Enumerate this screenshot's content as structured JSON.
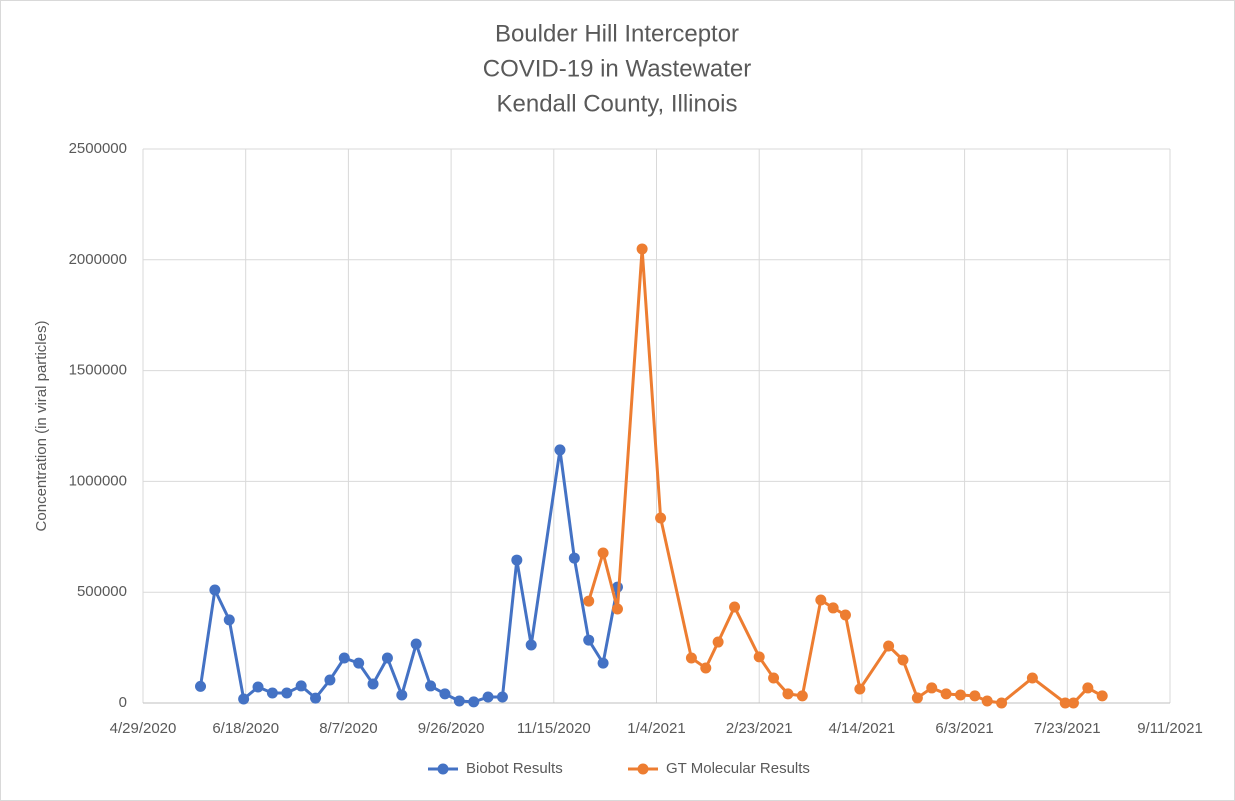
{
  "chart_data": {
    "type": "line",
    "title": [
      "Boulder Hill Interceptor",
      "COVID-19 in Wastewater",
      "Kendall County, Illinois"
    ],
    "y_label": "Concentration (in viral particles)",
    "xlim": [
      "4/29/2020",
      "9/11/2021"
    ],
    "xticks": [
      "4/29/2020",
      "6/18/2020",
      "8/7/2020",
      "9/26/2020",
      "11/15/2020",
      "1/4/2021",
      "2/23/2021",
      "4/14/2021",
      "6/3/2021",
      "7/23/2021",
      "9/11/2021"
    ],
    "ylim": [
      0,
      2500000
    ],
    "yticks": [
      0,
      500000,
      1000000,
      1500000,
      2000000,
      2500000
    ],
    "grid": true,
    "legend": "bottom",
    "series": [
      {
        "name": "Biobot Results",
        "color": "#4472c4",
        "x": [
          "5/27/2020",
          "6/3/2020",
          "6/10/2020",
          "6/17/2020",
          "6/24/2020",
          "7/1/2020",
          "7/8/2020",
          "7/15/2020",
          "7/22/2020",
          "7/29/2020",
          "8/5/2020",
          "8/12/2020",
          "8/19/2020",
          "8/26/2020",
          "9/2/2020",
          "9/9/2020",
          "9/16/2020",
          "9/23/2020",
          "9/30/2020",
          "10/7/2020",
          "10/14/2020",
          "10/21/2020",
          "10/28/2020",
          "11/4/2020",
          "11/18/2020",
          "11/25/2020",
          "12/2/2020",
          "12/9/2020",
          "12/16/2020"
        ],
        "values": [
          75000,
          510000,
          375000,
          18000,
          72000,
          45000,
          45000,
          77000,
          22000,
          104000,
          203000,
          180000,
          86000,
          203000,
          36000,
          266000,
          77000,
          41000,
          9000,
          5000,
          27000,
          27000,
          645000,
          262000,
          1142000,
          654000,
          284000,
          180000,
          523000
        ]
      },
      {
        "name": "GT Molecular Results",
        "color": "#ed7d31",
        "x": [
          "12/2/2020",
          "12/9/2020",
          "12/16/2020",
          "12/28/2020",
          "1/6/2021",
          "1/21/2021",
          "1/28/2021",
          "2/3/2021",
          "2/11/2021",
          "2/23/2021",
          "3/2/2021",
          "3/9/2021",
          "3/16/2021",
          "3/25/2021",
          "3/31/2021",
          "4/6/2021",
          "4/13/2021",
          "4/27/2021",
          "5/4/2021",
          "5/11/2021",
          "5/18/2021",
          "5/25/2021",
          "6/1/2021",
          "6/8/2021",
          "6/14/2021",
          "6/21/2021",
          "7/6/2021",
          "7/22/2021",
          "7/26/2021",
          "8/2/2021",
          "8/9/2021"
        ],
        "values": [
          460000,
          677000,
          424000,
          2049000,
          835000,
          203000,
          158000,
          275000,
          433000,
          208000,
          113000,
          41000,
          32000,
          465000,
          429000,
          397000,
          63000,
          257000,
          194000,
          23000,
          68000,
          41000,
          36000,
          32000,
          9000,
          0,
          113000,
          0,
          0,
          68000,
          32000
        ]
      }
    ]
  }
}
